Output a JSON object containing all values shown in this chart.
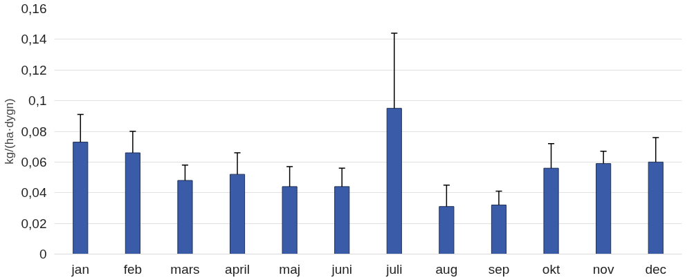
{
  "chart_data": {
    "type": "bar",
    "ylabel": "kg/(ha·dygn)",
    "categories": [
      "jan",
      "feb",
      "mars",
      "april",
      "maj",
      "juni",
      "juli",
      "aug",
      "sep",
      "okt",
      "nov",
      "dec"
    ],
    "values": [
      0.073,
      0.066,
      0.048,
      0.052,
      0.044,
      0.044,
      0.095,
      0.031,
      0.032,
      0.056,
      0.059,
      0.06
    ],
    "errors": [
      [
        0.073,
        0.091
      ],
      [
        0.066,
        0.08
      ],
      [
        0.048,
        0.058
      ],
      [
        0.052,
        0.066
      ],
      [
        0.044,
        0.057
      ],
      [
        0.044,
        0.056
      ],
      [
        0.095,
        0.144
      ],
      [
        0.031,
        0.045
      ],
      [
        0.032,
        0.041
      ],
      [
        0.056,
        0.072
      ],
      [
        0.059,
        0.067
      ],
      [
        0.06,
        0.076
      ]
    ],
    "color": "#3a5ca8",
    "ylim": [
      0,
      0.16
    ],
    "yticks": [
      0,
      {
        "value": 0.02,
        "label": "0,02"
      },
      {
        "value": 0.04,
        "label": "0,04"
      },
      {
        "value": 0.06,
        "label": "0,06"
      },
      {
        "value": 0.08,
        "label": "0,08"
      },
      {
        "value": 0.1,
        "label": "0,1"
      },
      {
        "value": 0.12,
        "label": "0,12"
      },
      {
        "value": 0.14,
        "label": "0,14"
      },
      {
        "value": 0.16,
        "label": "0,16"
      }
    ],
    "grid": "y"
  }
}
